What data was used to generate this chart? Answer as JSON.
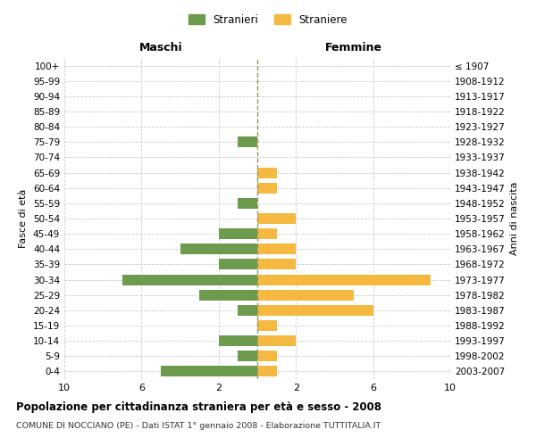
{
  "age_groups": [
    "0-4",
    "5-9",
    "10-14",
    "15-19",
    "20-24",
    "25-29",
    "30-34",
    "35-39",
    "40-44",
    "45-49",
    "50-54",
    "55-59",
    "60-64",
    "65-69",
    "70-74",
    "75-79",
    "80-84",
    "85-89",
    "90-94",
    "95-99",
    "100+"
  ],
  "birth_years": [
    "2003-2007",
    "1998-2002",
    "1993-1997",
    "1988-1992",
    "1983-1987",
    "1978-1982",
    "1973-1977",
    "1968-1972",
    "1963-1967",
    "1958-1962",
    "1953-1957",
    "1948-1952",
    "1943-1947",
    "1938-1942",
    "1933-1937",
    "1928-1932",
    "1923-1927",
    "1918-1922",
    "1913-1917",
    "1908-1912",
    "≤ 1907"
  ],
  "males": [
    5,
    1,
    2,
    0,
    1,
    3,
    7,
    2,
    4,
    2,
    0,
    1,
    0,
    0,
    0,
    1,
    0,
    0,
    0,
    0,
    0
  ],
  "females": [
    1,
    1,
    2,
    1,
    6,
    5,
    9,
    2,
    2,
    1,
    2,
    0,
    1,
    1,
    0,
    0,
    0,
    0,
    0,
    0,
    0
  ],
  "male_color": "#6d9b4e",
  "female_color": "#f5b840",
  "center_line_color": "#999966",
  "grid_color": "#cccccc",
  "bg_color": "#ffffff",
  "title": "Popolazione per cittadinanza straniera per età e sesso - 2008",
  "subtitle": "COMUNE DI NOCCIANO (PE) - Dati ISTAT 1° gennaio 2008 - Elaborazione TUTTITALIA.IT",
  "xlabel_left": "Maschi",
  "xlabel_right": "Femmine",
  "ylabel_left": "Fasce di età",
  "ylabel_right": "Anni di nascita",
  "legend_male": "Stranieri",
  "legend_female": "Straniere",
  "xlim": 10,
  "xtick_positions": [
    -10,
    -6,
    -2,
    2,
    6,
    10
  ],
  "xtick_labels": [
    "10",
    "6",
    "2",
    "2",
    "6",
    "10"
  ]
}
